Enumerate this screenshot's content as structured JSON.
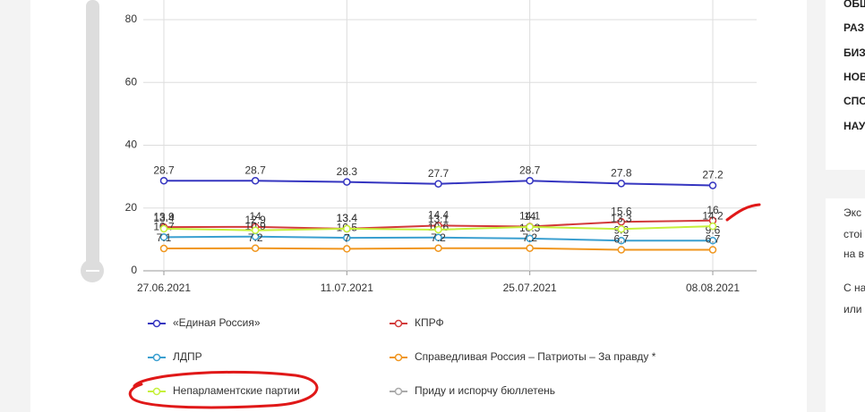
{
  "chart_data": {
    "type": "line",
    "categories": [
      "27.06.2021",
      null,
      "11.07.2021",
      null,
      "25.07.2021",
      null,
      "08.08.2021"
    ],
    "ylim": [
      0,
      80
    ],
    "yticks": [
      0,
      20,
      40,
      60,
      80
    ],
    "grid": true,
    "series": [
      {
        "name": "«Единая Россия»",
        "color": "#3535c0",
        "values": [
          28.7,
          28.7,
          28.3,
          27.7,
          28.7,
          27.8,
          27.2
        ]
      },
      {
        "name": "КПРФ",
        "color": "#d23a3a",
        "values": [
          13.9,
          14,
          13.4,
          14.4,
          14.1,
          15.6,
          16
        ]
      },
      {
        "name": "ЛДПР",
        "color": "#3a9fd0",
        "values": [
          10.7,
          10.9,
          10.5,
          10.6,
          10.3,
          9.6,
          9.6
        ]
      },
      {
        "name": "Справедливая Россия – Патриоты – За правду *",
        "color": "#f0961e",
        "values": [
          7.1,
          7.2,
          7,
          7.2,
          7.2,
          6.7,
          6.7
        ]
      },
      {
        "name": "Непарламентские партии",
        "color": "#c6f03a",
        "values": [
          13.4,
          12.9,
          13.4,
          13.1,
          14,
          13.3,
          14.2
        ]
      },
      {
        "name": "Приду и испорчу бюллетень",
        "color": "#aaaaaa",
        "values": [
          null,
          null,
          null,
          null,
          null,
          null,
          null
        ]
      }
    ]
  },
  "sidebar": {
    "menu": [
      "ОБЩ",
      "РАЗ",
      "БИЗ",
      "НОВ",
      "СПО",
      "НАУ"
    ],
    "text": [
      "Экс",
      "стоі",
      "на в",
      "С на",
      "или"
    ]
  }
}
